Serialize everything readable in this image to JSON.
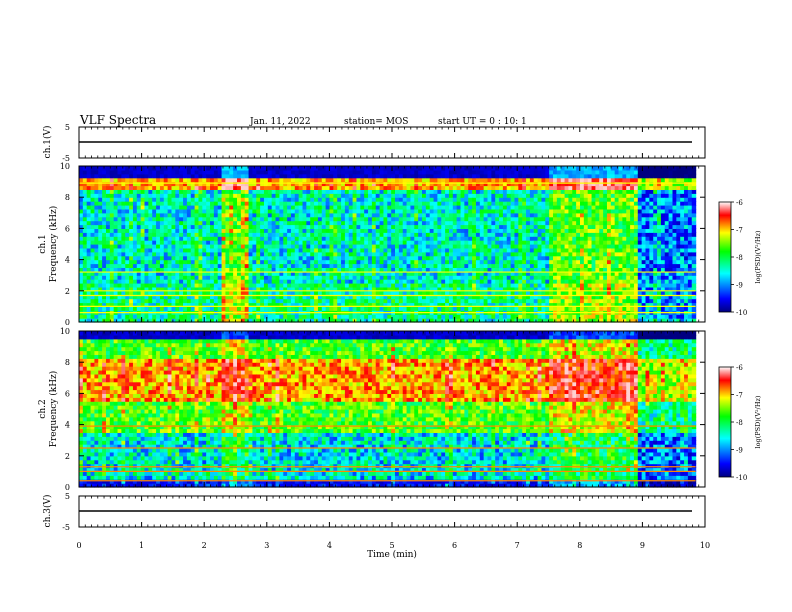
{
  "header": {
    "title": "VLF Spectra",
    "date": "Jan. 11, 2022",
    "station": "station= MOS",
    "start_time": "start UT =  0 : 10: 1"
  },
  "panels": {
    "ch1_voltage": {
      "ylabel": "ch.1(V)",
      "yticks": [
        "5",
        "-5"
      ]
    },
    "ch1_spectrogram": {
      "ylabel_top": "ch.1",
      "ylabel_bottom": "Frequency (kHz)",
      "yticks": [
        "10",
        "8",
        "6",
        "4",
        "2",
        "0"
      ]
    },
    "ch2_spectrogram": {
      "ylabel_top": "ch.2",
      "ylabel_bottom": "Frequency (kHz)",
      "yticks": [
        "10",
        "8",
        "6",
        "4",
        "2",
        "0"
      ]
    },
    "ch3_voltage": {
      "ylabel": "ch.3(V)",
      "yticks": [
        "5",
        "-5"
      ]
    }
  },
  "colorbar": {
    "ticks": [
      "-6",
      "-7",
      "-8",
      "-9",
      "-10"
    ],
    "label": "log(PSD)(V²/Hz)"
  },
  "xaxis": {
    "label": "Time  (min)",
    "ticks": [
      "0",
      "1",
      "2",
      "3",
      "4",
      "5",
      "6",
      "7",
      "8",
      "9",
      "10"
    ]
  },
  "chart_data": {
    "type": "heatmap",
    "title": "VLF Spectra",
    "xlabel": "Time  (min)",
    "xlim": [
      0,
      10
    ],
    "ylabel": "Frequency (kHz)",
    "ylim": [
      0,
      10
    ],
    "zlabel": "log(PSD)(V²/Hz)",
    "zlim": [
      -10,
      -6
    ],
    "colormap": [
      "#000080",
      "#0000ff",
      "#00ffff",
      "#00ff00",
      "#ffff00",
      "#ff0000",
      "#ffffff"
    ],
    "data_end_min": 9.85,
    "segments_min": [
      {
        "start": 0.0,
        "end": 2.25,
        "level": "normal"
      },
      {
        "start": 2.25,
        "end": 2.7,
        "level": "enhanced"
      },
      {
        "start": 2.7,
        "end": 7.5,
        "level": "normal"
      },
      {
        "start": 7.5,
        "end": 8.9,
        "level": "enhanced"
      },
      {
        "start": 8.9,
        "end": 9.85,
        "level": "sparse"
      }
    ],
    "ch1_horizontal_lines_khz": [
      0.6,
      1.0,
      1.7,
      2.0,
      3.2,
      8.9
    ],
    "ch2_horizontal_lines_khz": [
      0.4,
      1.0,
      1.3,
      2.5,
      3.9
    ],
    "voltage_channels": [
      {
        "name": "ch.1(V)",
        "ylim": [
          -5,
          5
        ],
        "level": 0
      },
      {
        "name": "ch.3(V)",
        "ylim": [
          -5,
          5
        ],
        "level": 0
      }
    ]
  }
}
